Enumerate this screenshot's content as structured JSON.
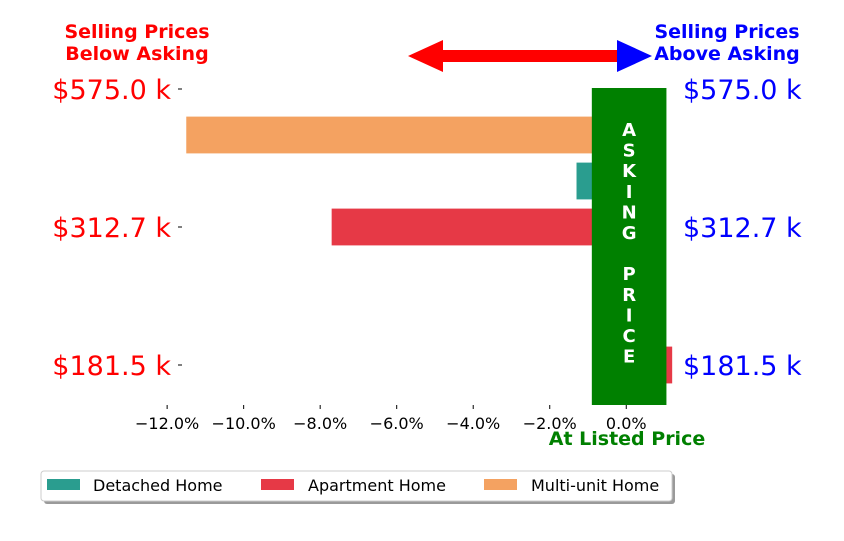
{
  "chart_data": {
    "type": "bar",
    "orientation": "horizontal",
    "x_unit": "%",
    "xlim": [
      -12.5,
      1.3
    ],
    "x_ticks": [
      -12.0,
      -10.0,
      -8.0,
      -6.0,
      -4.0,
      -2.0,
      0.0
    ],
    "x_tick_labels": [
      "−12.0%",
      "−10.0%",
      "−8.0%",
      "−6.0%",
      "−4.0%",
      "−2.0%",
      "0.0%"
    ],
    "y_tick_labels": [
      "$575.0 k",
      "$312.7 k",
      "$181.5 k"
    ],
    "left_header": [
      "Selling Prices",
      "Below Asking"
    ],
    "right_header": [
      "Selling Prices",
      "Above Asking"
    ],
    "x_caption": "At Listed Price",
    "asking_band": {
      "label": "ASKING PRICE",
      "letters": [
        "A",
        "S",
        "K",
        "I",
        "N",
        "G",
        "",
        "P",
        "R",
        "I",
        "C",
        "E"
      ],
      "x_range": [
        -0.9,
        1.05
      ]
    },
    "series": [
      {
        "name": "Detached Home",
        "color": "#2a9d8f",
        "bars": [
          {
            "price": "$312.7 k",
            "value": -1.3
          }
        ]
      },
      {
        "name": "Apartment Home",
        "color": "#e63946",
        "bars": [
          {
            "price": "$181.5 k",
            "value": 1.2
          },
          {
            "price": "$312.7 k",
            "value": -7.7
          }
        ]
      },
      {
        "name": "Multi-unit Home",
        "color": "#f4a261",
        "bars": [
          {
            "price": "$575.0 k",
            "value": -11.5
          }
        ]
      }
    ],
    "colors": {
      "below": "#ff0000",
      "above": "#0000ff",
      "asking": "#008000"
    },
    "grid": false,
    "legend_position": "bottom-left"
  }
}
